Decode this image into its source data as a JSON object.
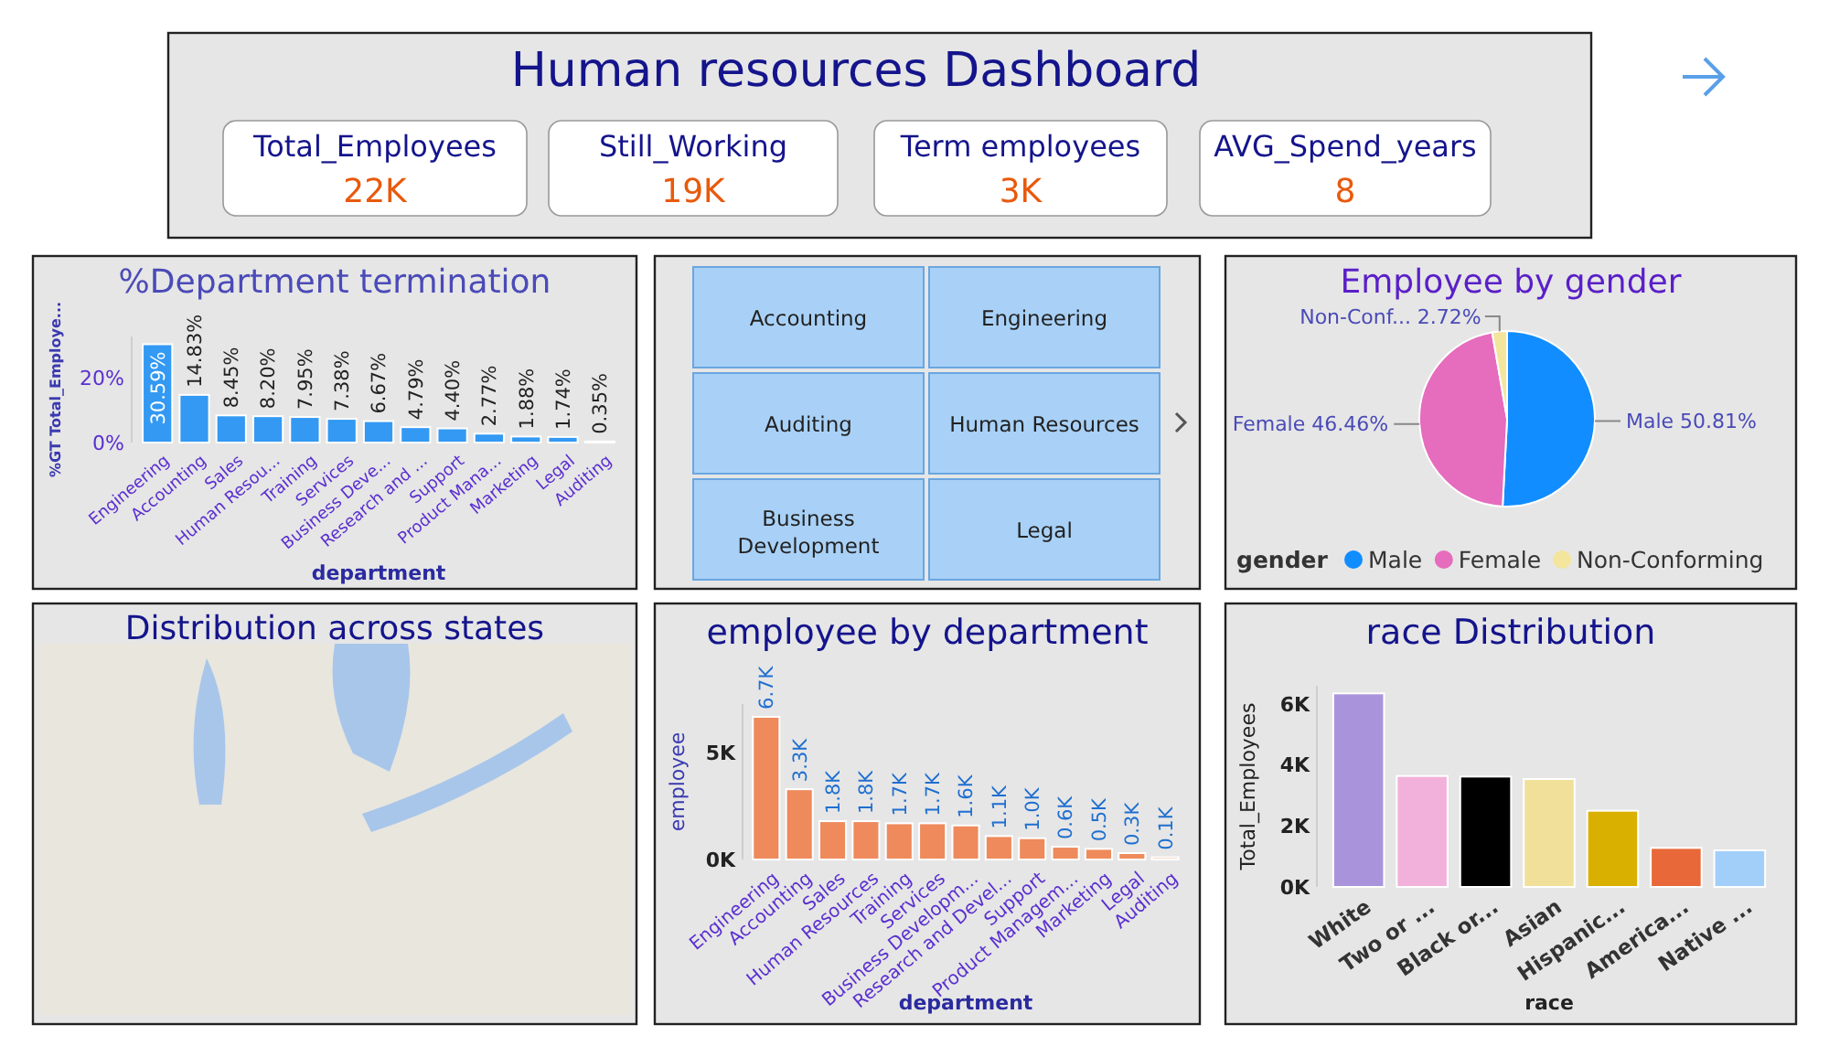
{
  "chart_data": [
    {
      "type": "other",
      "title": "Human resources Dashboard",
      "annotations": [
        "Total_Employees",
        "22K",
        "Still_Working",
        "19K",
        "Term employees",
        "3K",
        "AVG_Spend_years",
        "8"
      ]
    },
    {
      "type": "bar",
      "title": "%Department termination",
      "xlabel": "department",
      "ylabel": "%GT Total_Employe...",
      "categories": [
        "Engineering",
        "Accounting",
        "Sales",
        "Human Resou...",
        "Training",
        "Services",
        "Business Deve...",
        "Research and ...",
        "Support",
        "Product Mana...",
        "Marketing",
        "Legal",
        "Auditing"
      ],
      "values": [
        30.59,
        14.83,
        8.45,
        8.2,
        7.95,
        7.38,
        6.67,
        4.79,
        4.4,
        2.77,
        1.88,
        1.74,
        0.35
      ],
      "color": "#3399f3",
      "ylim": [
        0,
        33
      ],
      "yticks": [
        {
          "value": 0,
          "label": "0%"
        },
        {
          "value": 20,
          "label": "20%"
        }
      ],
      "value_labels": [
        "30.59%",
        "14.83%",
        "8.45%",
        "8.20%",
        "7.95%",
        "7.38%",
        "6.67%",
        "4.79%",
        "4.40%",
        "2.77%",
        "1.88%",
        "1.74%",
        "0.35%"
      ]
    },
    {
      "type": "other",
      "annotations": [
        "Accounting",
        "Engineering",
        "Auditing",
        "Human Resources",
        "Business Development",
        "Legal"
      ]
    },
    {
      "type": "pie",
      "title": "Employee by gender",
      "legend_title": "gender",
      "legend": "bottom",
      "categories": [
        "Male",
        "Female",
        "Non-Conforming"
      ],
      "values": [
        50.81,
        46.46,
        2.72
      ],
      "colors": [
        "#118dff",
        "#e66cbd",
        "#f3e59c"
      ],
      "value_labels": [
        "Male 50.81%",
        "Female 46.46%",
        "Non-Conf... 2.72%"
      ]
    },
    {
      "type": "other",
      "title": "Distribution across states"
    },
    {
      "type": "bar",
      "title": "employee by department",
      "xlabel": "department",
      "ylabel": "employee",
      "categories": [
        "Engineering",
        "Accounting",
        "Sales",
        "Human Resources",
        "Training",
        "Services",
        "Business Developm...",
        "Research and Devel...",
        "Support",
        "Product Managem...",
        "Marketing",
        "Legal",
        "Auditing"
      ],
      "values": [
        6700,
        3300,
        1800,
        1800,
        1700,
        1700,
        1600,
        1100,
        1000,
        600,
        500,
        300,
        100
      ],
      "color": "#ee8a5c",
      "ylim": [
        0,
        7300
      ],
      "yticks": [
        {
          "value": 0,
          "label": "0K"
        },
        {
          "value": 5000,
          "label": "5K"
        }
      ],
      "value_labels": [
        "6.7K",
        "3.3K",
        "1.8K",
        "1.8K",
        "1.7K",
        "1.7K",
        "1.6K",
        "1.1K",
        "1.0K",
        "0.6K",
        "0.5K",
        "0.3K",
        "0.1K"
      ]
    },
    {
      "type": "bar",
      "title": "race Distribution",
      "xlabel": "race",
      "ylabel": "Total_Employees",
      "categories": [
        "White",
        "Two or ...",
        "Black or...",
        "Asian",
        "Hispanic...",
        "America...",
        "Native ..."
      ],
      "values": [
        6350,
        3640,
        3620,
        3540,
        2500,
        1280,
        1200
      ],
      "colors": [
        "#a994dc",
        "#f2b1da",
        "#000000",
        "#f1e09a",
        "#d9b000",
        "#e8683a",
        "#a1cff9"
      ],
      "ylim": [
        0,
        6600
      ],
      "yticks": [
        {
          "value": 0,
          "label": "0K"
        },
        {
          "value": 2000,
          "label": "2K"
        },
        {
          "value": 4000,
          "label": "4K"
        },
        {
          "value": 6000,
          "label": "6K"
        }
      ]
    }
  ]
}
